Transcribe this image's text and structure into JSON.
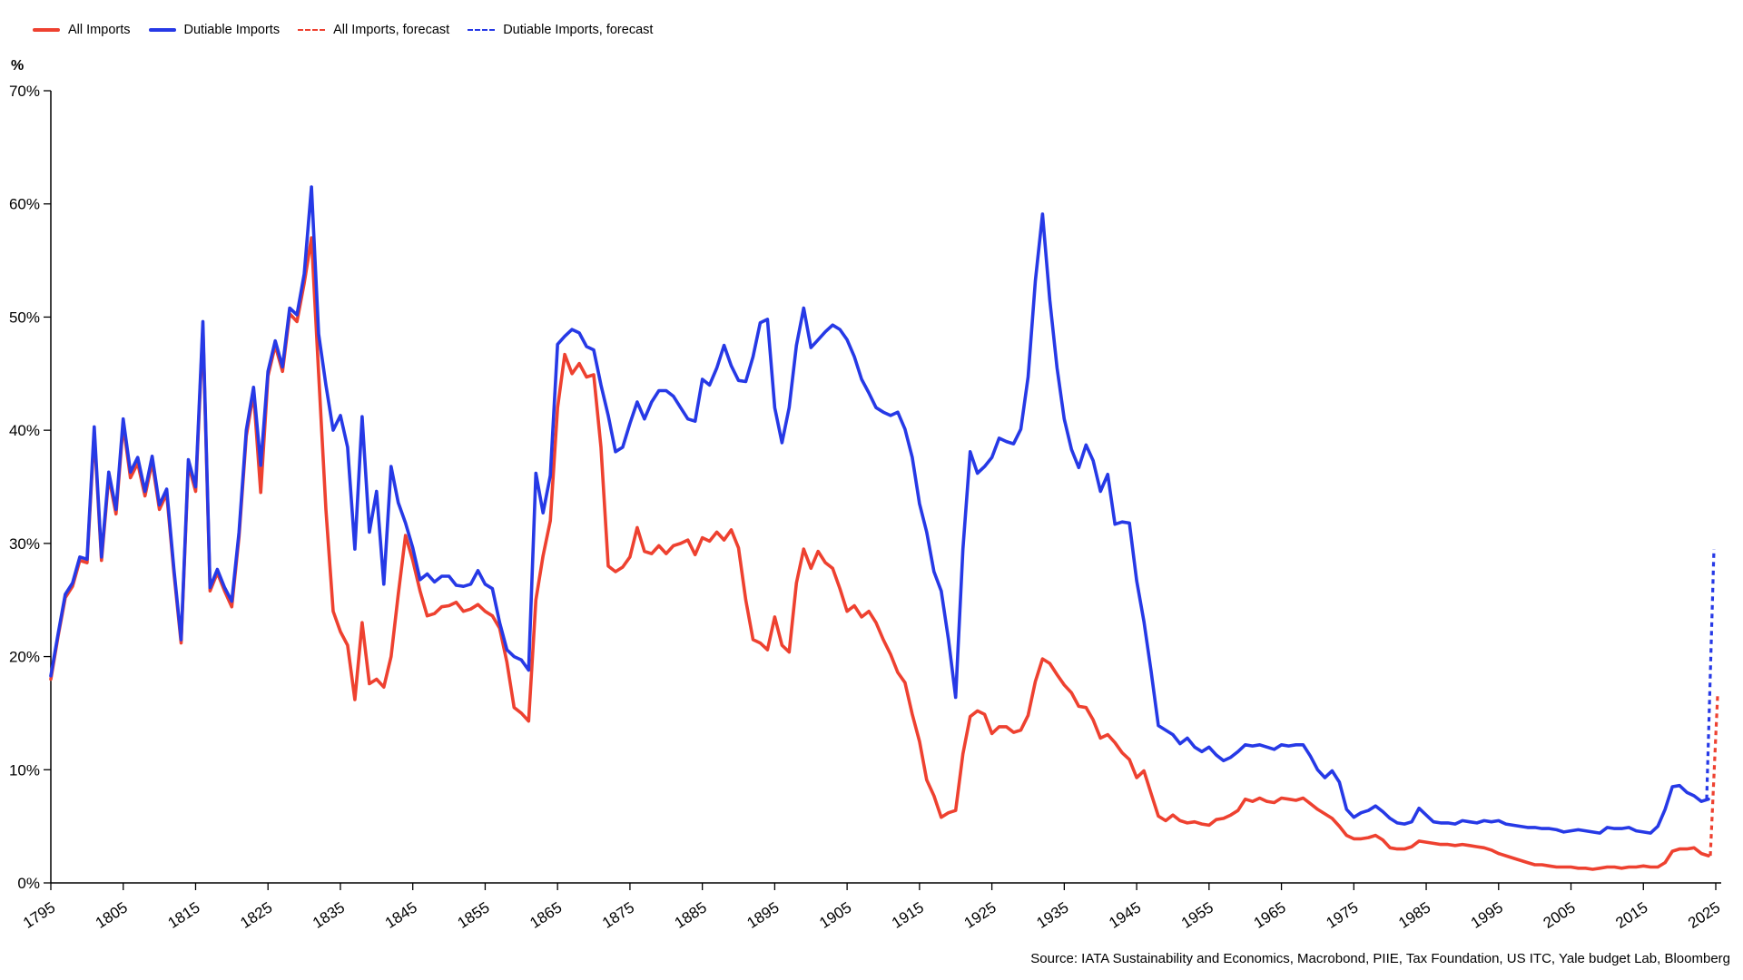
{
  "colors": {
    "all_imports": "#ee4130",
    "dutiable_imports": "#2639e6",
    "axis": "#000000",
    "background": "#ffffff"
  },
  "legend": {
    "items": [
      {
        "label": "All Imports",
        "color": "#ee4130",
        "dashed": false
      },
      {
        "label": "Dutiable Imports",
        "color": "#2639e6",
        "dashed": false
      },
      {
        "label": "All Imports, forecast",
        "color": "#ee4130",
        "dashed": true
      },
      {
        "label": "Dutiable Imports, forecast",
        "color": "#2639e6",
        "dashed": true
      }
    ]
  },
  "source": {
    "text": "Source: IATA Sustainability and Economics, Macrobond, PIIE, Tax Foundation, US ITC, Yale budget Lab, Bloomberg"
  },
  "chart_data": {
    "type": "line",
    "title": "",
    "xlabel": "",
    "ylabel": "%",
    "y_unit_label": "%",
    "x_range": [
      1795,
      2025
    ],
    "ylim": [
      0,
      70
    ],
    "grid": false,
    "legend_position": "top-left",
    "x_ticks": [
      1795,
      1805,
      1815,
      1825,
      1835,
      1845,
      1855,
      1865,
      1875,
      1885,
      1895,
      1905,
      1915,
      1925,
      1935,
      1945,
      1955,
      1965,
      1975,
      1985,
      1995,
      2005,
      2015,
      2025
    ],
    "y_ticks": [
      0,
      10,
      20,
      30,
      40,
      50,
      60,
      70
    ],
    "y_tick_suffix": "%",
    "series": [
      {
        "name": "All Imports",
        "color": "#ee4130",
        "style": "solid",
        "year_start": 1795,
        "values": [
          18.0,
          21.8,
          25.2,
          26.2,
          28.5,
          28.3,
          39.8,
          28.5,
          35.9,
          32.6,
          40.5,
          35.8,
          37.1,
          34.2,
          37.2,
          33.0,
          34.4,
          27.4,
          21.2,
          37.0,
          34.6,
          49.0,
          25.8,
          27.4,
          25.8,
          24.4,
          30.6,
          39.5,
          43.3,
          34.5,
          44.8,
          47.5,
          45.2,
          50.3,
          49.6,
          53.0,
          57.0,
          45.0,
          33.0,
          24.0,
          22.2,
          21.0,
          16.2,
          23.0,
          17.6,
          18.0,
          17.3,
          20.0,
          25.5,
          30.7,
          28.5,
          25.8,
          23.6,
          23.8,
          24.4,
          24.5,
          24.8,
          24.0,
          24.2,
          24.6,
          24.0,
          23.6,
          22.5,
          19.5,
          15.5,
          15.0,
          14.3,
          25.0,
          28.9,
          32.0,
          42.0,
          46.7,
          45.0,
          45.9,
          44.7,
          44.9,
          38.5,
          28.0,
          27.5,
          27.9,
          28.8,
          31.4,
          29.3,
          29.1,
          29.8,
          29.1,
          29.8,
          30.0,
          30.3,
          29.0,
          30.5,
          30.2,
          31.0,
          30.3,
          31.2,
          29.6,
          25.0,
          21.5,
          21.2,
          20.6,
          23.5,
          21.0,
          20.4,
          26.5,
          29.5,
          27.8,
          29.3,
          28.3,
          27.8,
          26.0,
          24.0,
          24.5,
          23.5,
          24.0,
          23.0,
          21.5,
          20.2,
          18.6,
          17.7,
          14.9,
          12.5,
          9.1,
          7.7,
          5.8,
          6.2,
          6.4,
          11.4,
          14.7,
          15.2,
          14.9,
          13.2,
          13.8,
          13.8,
          13.3,
          13.5,
          14.8,
          17.8,
          19.8,
          19.4,
          18.4,
          17.5,
          16.8,
          15.6,
          15.5,
          14.4,
          12.8,
          13.1,
          12.4,
          11.5,
          10.9,
          9.3,
          9.9,
          7.9,
          5.9,
          5.5,
          6.0,
          5.5,
          5.3,
          5.4,
          5.2,
          5.1,
          5.6,
          5.7,
          6.0,
          6.4,
          7.4,
          7.2,
          7.5,
          7.2,
          7.1,
          7.5,
          7.4,
          7.3,
          7.5,
          7.0,
          6.5,
          6.1,
          5.7,
          5.0,
          4.2,
          3.9,
          3.9,
          4.0,
          4.2,
          3.8,
          3.1,
          3.0,
          3.0,
          3.2,
          3.7,
          3.6,
          3.5,
          3.4,
          3.4,
          3.3,
          3.4,
          3.3,
          3.2,
          3.1,
          2.9,
          2.6,
          2.4,
          2.2,
          2.0,
          1.8,
          1.6,
          1.6,
          1.5,
          1.4,
          1.4,
          1.4,
          1.3,
          1.3,
          1.2,
          1.3,
          1.4,
          1.4,
          1.3,
          1.4,
          1.4,
          1.5,
          1.4,
          1.4,
          1.8,
          2.8,
          3.0,
          3.0,
          3.1,
          2.6,
          2.4
        ]
      },
      {
        "name": "Dutiable Imports",
        "color": "#2639e6",
        "style": "solid",
        "year_start": 1795,
        "values": [
          18.3,
          22.0,
          25.5,
          26.5,
          28.8,
          28.6,
          40.3,
          28.8,
          36.3,
          33.0,
          41.0,
          36.3,
          37.6,
          34.6,
          37.7,
          33.4,
          34.8,
          27.7,
          21.5,
          37.4,
          35.0,
          49.6,
          26.1,
          27.7,
          26.1,
          24.9,
          31.0,
          40.0,
          43.8,
          36.9,
          45.2,
          47.9,
          45.6,
          50.8,
          50.2,
          53.8,
          61.5,
          48.5,
          44.0,
          40.0,
          41.3,
          38.5,
          29.5,
          41.2,
          31.0,
          34.6,
          26.4,
          36.8,
          33.6,
          31.8,
          29.6,
          26.8,
          27.3,
          26.6,
          27.1,
          27.1,
          26.3,
          26.2,
          26.4,
          27.6,
          26.4,
          26.0,
          23.0,
          20.6,
          20.0,
          19.7,
          18.8,
          36.2,
          32.7,
          36.0,
          47.6,
          48.3,
          48.9,
          48.6,
          47.4,
          47.1,
          44.0,
          41.3,
          38.1,
          38.5,
          40.6,
          42.5,
          41.0,
          42.5,
          43.5,
          43.5,
          43.0,
          42.0,
          41.0,
          40.8,
          44.5,
          44.0,
          45.5,
          47.5,
          45.7,
          44.4,
          44.3,
          46.5,
          49.5,
          49.8,
          42.0,
          38.9,
          42.0,
          47.5,
          50.8,
          47.3,
          48.0,
          48.7,
          49.3,
          48.9,
          48.0,
          46.5,
          44.5,
          43.3,
          42.0,
          41.6,
          41.3,
          41.6,
          40.1,
          37.6,
          33.5,
          31.0,
          27.5,
          25.8,
          21.5,
          16.4,
          29.5,
          38.1,
          36.2,
          36.8,
          37.6,
          39.3,
          39.0,
          38.8,
          40.1,
          44.7,
          53.2,
          59.1,
          51.5,
          45.5,
          41.0,
          38.3,
          36.7,
          38.7,
          37.3,
          34.6,
          36.1,
          31.7,
          31.9,
          31.8,
          26.7,
          23.1,
          18.7,
          13.9,
          13.5,
          13.1,
          12.3,
          12.8,
          12.0,
          11.6,
          12.0,
          11.3,
          10.8,
          11.1,
          11.6,
          12.2,
          12.1,
          12.2,
          12.0,
          11.8,
          12.2,
          12.1,
          12.2,
          12.2,
          11.2,
          10.0,
          9.3,
          9.9,
          8.9,
          6.5,
          5.8,
          6.2,
          6.4,
          6.8,
          6.3,
          5.7,
          5.3,
          5.2,
          5.4,
          6.6,
          6.0,
          5.4,
          5.3,
          5.3,
          5.2,
          5.5,
          5.4,
          5.3,
          5.5,
          5.4,
          5.5,
          5.2,
          5.1,
          5.0,
          4.9,
          4.9,
          4.8,
          4.8,
          4.7,
          4.5,
          4.6,
          4.7,
          4.6,
          4.5,
          4.4,
          4.9,
          4.8,
          4.8,
          4.9,
          4.6,
          4.5,
          4.4,
          5.0,
          6.5,
          8.5,
          8.6,
          8.0,
          7.7,
          7.2,
          7.4
        ]
      },
      {
        "name": "All Imports, forecast",
        "color": "#ee4130",
        "style": "dashed",
        "years": [
          2024,
          2025
        ],
        "values": [
          2.4,
          16.5
        ],
        "x_offset": 2
      },
      {
        "name": "Dutiable Imports, forecast",
        "color": "#2639e6",
        "style": "dashed",
        "years": [
          2024,
          2025
        ],
        "values": [
          7.4,
          29.5
        ],
        "x_offset": -2
      }
    ]
  },
  "layout_values": {
    "plot": {
      "x_year_min": 56,
      "x_year_max": 1890,
      "y_zero": 973,
      "y_top": 100,
      "x_axis_end": 1896
    }
  }
}
